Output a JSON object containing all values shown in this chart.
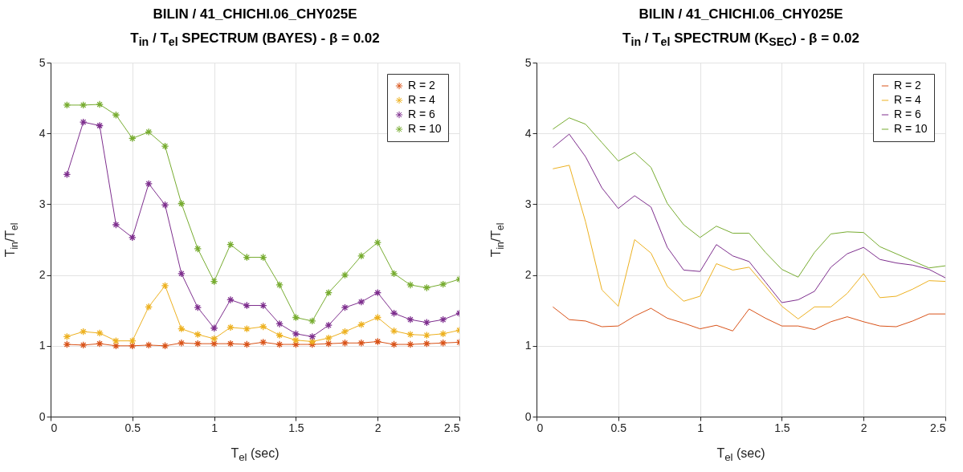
{
  "chart_data": [
    {
      "type": "line",
      "title": "BILIN / 41_CHICHI.06_CHY025E",
      "subtitle": "T$_{in}$ / T$_{el}$ SPECTRUM (BAYES) - β = 0.02",
      "xlabel": "T$_{el}$ (sec)",
      "ylabel": "T$_{in}$/T$_{el}$",
      "x": [
        0.1,
        0.2,
        0.3,
        0.4,
        0.5,
        0.6,
        0.7,
        0.8,
        0.9,
        1.0,
        1.1,
        1.2,
        1.3,
        1.4,
        1.5,
        1.6,
        1.7,
        1.8,
        1.9,
        2.0,
        2.1,
        2.2,
        2.3,
        2.4,
        2.5
      ],
      "series": [
        {
          "name": "R = 2",
          "color": "#d95319",
          "values": [
            1.02,
            1.01,
            1.03,
            1.0,
            1.0,
            1.01,
            1.0,
            1.04,
            1.03,
            1.03,
            1.03,
            1.02,
            1.05,
            1.02,
            1.02,
            1.02,
            1.03,
            1.04,
            1.04,
            1.06,
            1.02,
            1.02,
            1.03,
            1.04,
            1.05
          ]
        },
        {
          "name": "R = 4",
          "color": "#edb120",
          "values": [
            1.13,
            1.2,
            1.18,
            1.07,
            1.07,
            1.55,
            1.85,
            1.24,
            1.16,
            1.1,
            1.26,
            1.24,
            1.27,
            1.15,
            1.08,
            1.06,
            1.11,
            1.2,
            1.3,
            1.4,
            1.21,
            1.16,
            1.15,
            1.17,
            1.22
          ]
        },
        {
          "name": "R = 6",
          "color": "#7e2f8e",
          "values": [
            3.42,
            4.16,
            4.11,
            2.71,
            2.53,
            3.29,
            2.99,
            2.02,
            1.54,
            1.25,
            1.65,
            1.57,
            1.57,
            1.31,
            1.17,
            1.13,
            1.29,
            1.54,
            1.62,
            1.75,
            1.46,
            1.37,
            1.33,
            1.37,
            1.46
          ]
        },
        {
          "name": "R = 10",
          "color": "#77ac30",
          "values": [
            4.4,
            4.4,
            4.41,
            4.26,
            3.93,
            4.02,
            3.82,
            3.01,
            2.37,
            1.91,
            2.43,
            2.25,
            2.25,
            1.86,
            1.4,
            1.35,
            1.75,
            2.0,
            2.27,
            2.46,
            2.02,
            1.86,
            1.82,
            1.87,
            1.94
          ]
        }
      ],
      "xlim": [
        0,
        2.5
      ],
      "xticks": [
        0,
        0.5,
        1,
        1.5,
        2,
        2.5
      ],
      "ylim": [
        0,
        5
      ],
      "yticks": [
        0,
        1,
        2,
        3,
        4,
        5
      ],
      "grid": true,
      "legend": "top right",
      "marker": "cross",
      "line_style": "solid"
    },
    {
      "type": "line",
      "title": "BILIN / 41_CHICHI.06_CHY025E",
      "subtitle": "T$_{in}$ / T$_{el}$ SPECTRUM (K$_{SEC}$) - β = 0.02",
      "xlabel": "T$_{el}$ (sec)",
      "ylabel": "T$_{in}$/T$_{el}$",
      "x": [
        0.1,
        0.2,
        0.3,
        0.4,
        0.5,
        0.6,
        0.7,
        0.8,
        0.9,
        1.0,
        1.1,
        1.2,
        1.3,
        1.4,
        1.5,
        1.6,
        1.7,
        1.8,
        1.9,
        2.0,
        2.1,
        2.2,
        2.3,
        2.4,
        2.5
      ],
      "series": [
        {
          "name": "R = 2",
          "color": "#d95319",
          "values": [
            1.55,
            1.37,
            1.35,
            1.27,
            1.28,
            1.42,
            1.53,
            1.39,
            1.32,
            1.24,
            1.29,
            1.21,
            1.52,
            1.39,
            1.28,
            1.28,
            1.23,
            1.34,
            1.41,
            1.34,
            1.28,
            1.27,
            1.35,
            1.45,
            1.45
          ]
        },
        {
          "name": "R = 4",
          "color": "#edb120",
          "values": [
            3.5,
            3.55,
            2.75,
            1.79,
            1.56,
            2.5,
            2.31,
            1.84,
            1.63,
            1.7,
            2.16,
            2.07,
            2.11,
            1.84,
            1.56,
            1.38,
            1.55,
            1.55,
            1.74,
            2.02,
            1.68,
            1.7,
            1.8,
            1.92,
            1.91
          ]
        },
        {
          "name": "R = 6",
          "color": "#7e2f8e",
          "values": [
            3.8,
            3.99,
            3.67,
            3.23,
            2.94,
            3.12,
            2.96,
            2.39,
            2.07,
            2.05,
            2.43,
            2.27,
            2.19,
            1.9,
            1.61,
            1.65,
            1.77,
            2.11,
            2.3,
            2.39,
            2.22,
            2.17,
            2.14,
            2.08,
            1.96
          ]
        },
        {
          "name": "R = 10",
          "color": "#77ac30",
          "values": [
            4.06,
            4.22,
            4.13,
            3.87,
            3.61,
            3.73,
            3.52,
            3.01,
            2.71,
            2.53,
            2.69,
            2.59,
            2.59,
            2.32,
            2.08,
            1.97,
            2.32,
            2.58,
            2.61,
            2.6,
            2.4,
            2.3,
            2.2,
            2.1,
            2.13
          ]
        }
      ],
      "xlim": [
        0,
        2.5
      ],
      "xticks": [
        0,
        0.5,
        1,
        1.5,
        2,
        2.5
      ],
      "ylim": [
        0,
        5
      ],
      "yticks": [
        0,
        1,
        2,
        3,
        4,
        5
      ],
      "grid": true,
      "legend": "top right",
      "line_style": "solid"
    }
  ]
}
